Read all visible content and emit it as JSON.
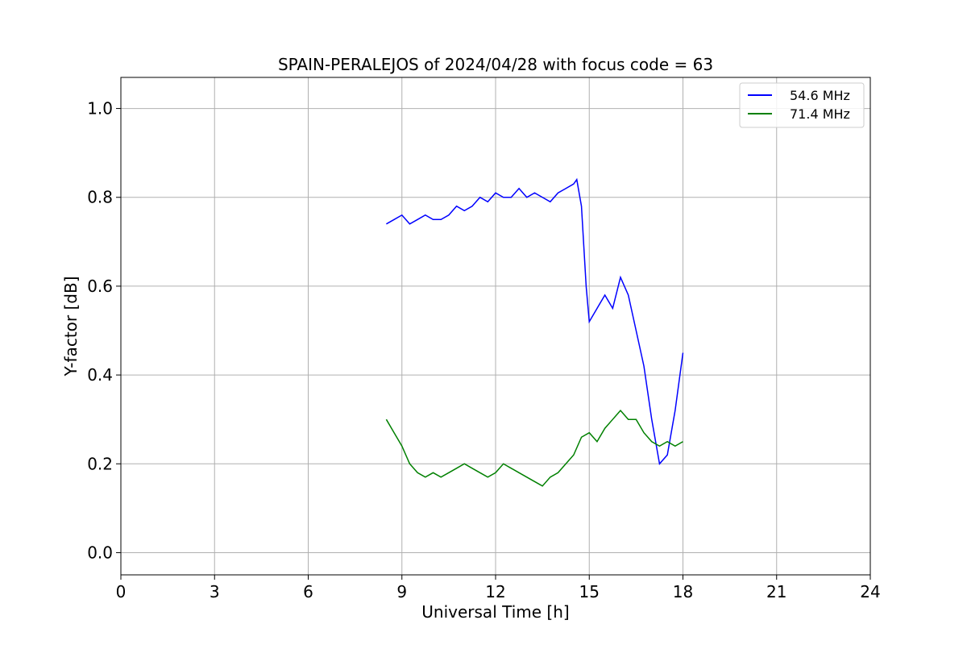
{
  "chart_data": {
    "type": "line",
    "title": "SPAIN-PERALEJOS of 2024/04/28 with focus code = 63",
    "xlabel": "Universal Time [h]",
    "ylabel": "Y-factor [dB]",
    "xlim": [
      0,
      24
    ],
    "ylim": [
      -0.05,
      1.07
    ],
    "xticks": [
      0,
      3,
      6,
      9,
      12,
      15,
      18,
      21,
      24
    ],
    "xtick_labels": [
      "0",
      "3",
      "6",
      "9",
      "12",
      "15",
      "18",
      "21",
      "24"
    ],
    "yticks": [
      0.0,
      0.2,
      0.4,
      0.6,
      0.8,
      1.0
    ],
    "ytick_labels": [
      "0.0",
      "0.2",
      "0.4",
      "0.6",
      "0.8",
      "1.0"
    ],
    "grid": true,
    "legend_position": "top-right",
    "series": [
      {
        "name": "54.6 MHz",
        "color": "#0000ff",
        "x": [
          8.5,
          8.75,
          9.0,
          9.25,
          9.5,
          9.75,
          10.0,
          10.25,
          10.5,
          10.75,
          11.0,
          11.25,
          11.5,
          11.75,
          12.0,
          12.25,
          12.5,
          12.75,
          13.0,
          13.25,
          13.5,
          13.75,
          14.0,
          14.25,
          14.5,
          14.6,
          14.75,
          14.9,
          15.0,
          15.25,
          15.5,
          15.75,
          16.0,
          16.25,
          16.5,
          16.75,
          17.0,
          17.25,
          17.5,
          17.75,
          18.0
        ],
        "y": [
          0.74,
          0.75,
          0.76,
          0.74,
          0.75,
          0.76,
          0.75,
          0.75,
          0.76,
          0.78,
          0.77,
          0.78,
          0.8,
          0.79,
          0.81,
          0.8,
          0.8,
          0.82,
          0.8,
          0.81,
          0.8,
          0.79,
          0.81,
          0.82,
          0.83,
          0.84,
          0.78,
          0.6,
          0.52,
          0.55,
          0.58,
          0.55,
          0.62,
          0.58,
          0.5,
          0.42,
          0.3,
          0.2,
          0.22,
          0.32,
          0.45
        ]
      },
      {
        "name": "71.4 MHz",
        "color": "#008000",
        "x": [
          8.5,
          8.75,
          9.0,
          9.25,
          9.5,
          9.75,
          10.0,
          10.25,
          10.5,
          10.75,
          11.0,
          11.25,
          11.5,
          11.75,
          12.0,
          12.25,
          12.5,
          12.75,
          13.0,
          13.25,
          13.5,
          13.75,
          14.0,
          14.25,
          14.5,
          14.75,
          15.0,
          15.25,
          15.5,
          15.75,
          16.0,
          16.25,
          16.5,
          16.75,
          17.0,
          17.25,
          17.5,
          17.75,
          18.0
        ],
        "y": [
          0.3,
          0.27,
          0.24,
          0.2,
          0.18,
          0.17,
          0.18,
          0.17,
          0.18,
          0.19,
          0.2,
          0.19,
          0.18,
          0.17,
          0.18,
          0.2,
          0.19,
          0.18,
          0.17,
          0.16,
          0.15,
          0.17,
          0.18,
          0.2,
          0.22,
          0.26,
          0.27,
          0.25,
          0.28,
          0.3,
          0.32,
          0.3,
          0.3,
          0.27,
          0.25,
          0.24,
          0.25,
          0.24,
          0.25
        ]
      }
    ]
  }
}
